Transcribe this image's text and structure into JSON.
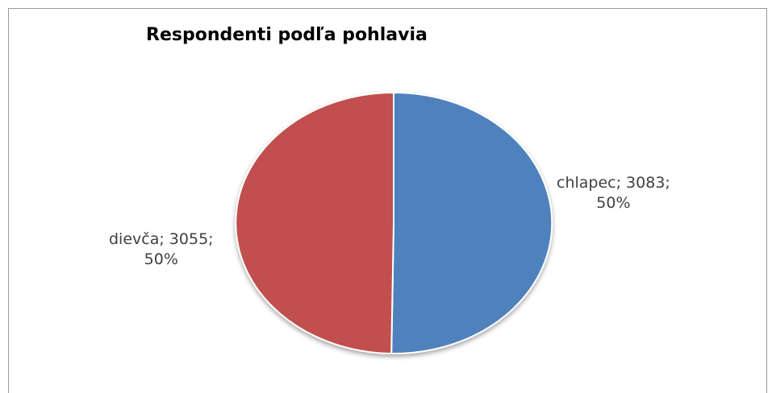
{
  "chart_data": {
    "type": "pie",
    "title": "Respondenti podľa pohlavia",
    "slices": [
      {
        "label": "chlapec",
        "value": 3083,
        "percent": "50%",
        "color": "#4F81BD"
      },
      {
        "label": "dievča",
        "value": 3055,
        "percent": "50%",
        "color": "#C0504D"
      }
    ],
    "legend": "none"
  },
  "labels": {
    "chlapec_line1": "chlapec; 3083;",
    "chlapec_line2": "50%",
    "dievca_line1": "dievča; 3055;",
    "dievca_line2": "50%"
  }
}
